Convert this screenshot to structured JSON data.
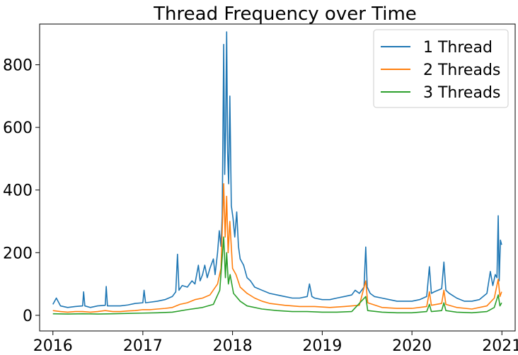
{
  "chart_data": {
    "type": "line",
    "title": "Thread Frequency over Time",
    "xlabel": "",
    "ylabel": "",
    "x_axis": {
      "kind": "date",
      "range": [
        "2015-11-08",
        "2021-02-24"
      ],
      "ticks": [
        "2016",
        "2017",
        "2018",
        "2019",
        "2020",
        "2021"
      ]
    },
    "y_axis": {
      "range": [
        -50,
        930
      ],
      "ticks": [
        0,
        200,
        400,
        600,
        800
      ]
    },
    "grid": false,
    "legend": {
      "position": "top-right"
    },
    "series": [
      {
        "name": "1 Thread",
        "color": "#1f77b4",
        "points": [
          [
            "2016-01-01",
            35
          ],
          [
            "2016-01-15",
            55
          ],
          [
            "2016-02-01",
            30
          ],
          [
            "2016-03-01",
            25
          ],
          [
            "2016-04-01",
            28
          ],
          [
            "2016-05-01",
            30
          ],
          [
            "2016-05-05",
            75
          ],
          [
            "2016-05-10",
            30
          ],
          [
            "2016-06-01",
            25
          ],
          [
            "2016-07-01",
            30
          ],
          [
            "2016-08-01",
            32
          ],
          [
            "2016-08-05",
            92
          ],
          [
            "2016-08-10",
            30
          ],
          [
            "2016-09-01",
            30
          ],
          [
            "2016-10-01",
            30
          ],
          [
            "2016-11-01",
            33
          ],
          [
            "2016-12-01",
            38
          ],
          [
            "2017-01-01",
            40
          ],
          [
            "2017-01-06",
            80
          ],
          [
            "2017-01-12",
            40
          ],
          [
            "2017-02-01",
            42
          ],
          [
            "2017-03-01",
            45
          ],
          [
            "2017-04-01",
            50
          ],
          [
            "2017-05-01",
            60
          ],
          [
            "2017-05-15",
            75
          ],
          [
            "2017-05-22",
            195
          ],
          [
            "2017-05-28",
            80
          ],
          [
            "2017-06-10",
            95
          ],
          [
            "2017-07-01",
            90
          ],
          [
            "2017-07-20",
            110
          ],
          [
            "2017-08-01",
            100
          ],
          [
            "2017-08-15",
            160
          ],
          [
            "2017-08-22",
            110
          ],
          [
            "2017-09-01",
            130
          ],
          [
            "2017-09-10",
            160
          ],
          [
            "2017-09-20",
            120
          ],
          [
            "2017-10-01",
            150
          ],
          [
            "2017-10-15",
            180
          ],
          [
            "2017-10-22",
            130
          ],
          [
            "2017-11-01",
            200
          ],
          [
            "2017-11-08",
            270
          ],
          [
            "2017-11-15",
            220
          ],
          [
            "2017-11-20",
            320
          ],
          [
            "2017-11-26",
            865
          ],
          [
            "2017-11-30",
            450
          ],
          [
            "2017-12-04",
            600
          ],
          [
            "2017-12-08",
            905
          ],
          [
            "2017-12-12",
            520
          ],
          [
            "2017-12-16",
            420
          ],
          [
            "2017-12-21",
            700
          ],
          [
            "2017-12-27",
            350
          ],
          [
            "2018-01-03",
            310
          ],
          [
            "2018-01-10",
            250
          ],
          [
            "2018-01-18",
            330
          ],
          [
            "2018-01-25",
            220
          ],
          [
            "2018-02-01",
            180
          ],
          [
            "2018-02-15",
            160
          ],
          [
            "2018-03-01",
            120
          ],
          [
            "2018-03-15",
            110
          ],
          [
            "2018-04-01",
            90
          ],
          [
            "2018-05-01",
            80
          ],
          [
            "2018-06-01",
            70
          ],
          [
            "2018-07-01",
            65
          ],
          [
            "2018-08-01",
            60
          ],
          [
            "2018-09-01",
            55
          ],
          [
            "2018-10-01",
            55
          ],
          [
            "2018-11-01",
            60
          ],
          [
            "2018-11-10",
            100
          ],
          [
            "2018-11-20",
            60
          ],
          [
            "2018-12-01",
            55
          ],
          [
            "2019-01-01",
            50
          ],
          [
            "2019-02-01",
            50
          ],
          [
            "2019-03-01",
            55
          ],
          [
            "2019-04-01",
            60
          ],
          [
            "2019-05-01",
            65
          ],
          [
            "2019-05-15",
            80
          ],
          [
            "2019-06-01",
            70
          ],
          [
            "2019-06-20",
            90
          ],
          [
            "2019-06-27",
            218
          ],
          [
            "2019-07-03",
            90
          ],
          [
            "2019-07-15",
            70
          ],
          [
            "2019-08-01",
            60
          ],
          [
            "2019-09-01",
            55
          ],
          [
            "2019-10-01",
            50
          ],
          [
            "2019-11-01",
            45
          ],
          [
            "2019-12-01",
            45
          ],
          [
            "2020-01-01",
            45
          ],
          [
            "2020-02-01",
            50
          ],
          [
            "2020-03-01",
            60
          ],
          [
            "2020-03-12",
            155
          ],
          [
            "2020-03-20",
            70
          ],
          [
            "2020-04-01",
            75
          ],
          [
            "2020-05-01",
            85
          ],
          [
            "2020-05-10",
            170
          ],
          [
            "2020-05-18",
            80
          ],
          [
            "2020-06-01",
            70
          ],
          [
            "2020-07-01",
            55
          ],
          [
            "2020-08-01",
            45
          ],
          [
            "2020-09-01",
            45
          ],
          [
            "2020-10-01",
            50
          ],
          [
            "2020-11-01",
            70
          ],
          [
            "2020-11-15",
            140
          ],
          [
            "2020-11-25",
            95
          ],
          [
            "2020-12-05",
            130
          ],
          [
            "2020-12-12",
            120
          ],
          [
            "2020-12-17",
            318
          ],
          [
            "2020-12-21",
            110
          ],
          [
            "2020-12-26",
            240
          ],
          [
            "2020-12-31",
            225
          ]
        ]
      },
      {
        "name": "2 Threads",
        "color": "#ff7f0e",
        "points": [
          [
            "2016-01-01",
            15
          ],
          [
            "2016-02-01",
            12
          ],
          [
            "2016-03-01",
            10
          ],
          [
            "2016-04-01",
            12
          ],
          [
            "2016-05-01",
            12
          ],
          [
            "2016-06-01",
            10
          ],
          [
            "2016-07-01",
            12
          ],
          [
            "2016-08-01",
            15
          ],
          [
            "2016-09-01",
            12
          ],
          [
            "2016-10-01",
            12
          ],
          [
            "2016-11-01",
            14
          ],
          [
            "2016-12-01",
            15
          ],
          [
            "2017-01-01",
            18
          ],
          [
            "2017-02-01",
            18
          ],
          [
            "2017-03-01",
            20
          ],
          [
            "2017-04-01",
            22
          ],
          [
            "2017-05-01",
            25
          ],
          [
            "2017-06-01",
            35
          ],
          [
            "2017-07-01",
            40
          ],
          [
            "2017-08-01",
            50
          ],
          [
            "2017-09-01",
            55
          ],
          [
            "2017-10-01",
            65
          ],
          [
            "2017-11-01",
            100
          ],
          [
            "2017-11-15",
            150
          ],
          [
            "2017-11-26",
            420
          ],
          [
            "2017-12-02",
            250
          ],
          [
            "2017-12-08",
            380
          ],
          [
            "2017-12-14",
            200
          ],
          [
            "2017-12-21",
            300
          ],
          [
            "2018-01-01",
            150
          ],
          [
            "2018-01-15",
            130
          ],
          [
            "2018-02-01",
            90
          ],
          [
            "2018-03-01",
            70
          ],
          [
            "2018-04-01",
            55
          ],
          [
            "2018-05-01",
            45
          ],
          [
            "2018-06-01",
            38
          ],
          [
            "2018-08-01",
            32
          ],
          [
            "2018-10-01",
            28
          ],
          [
            "2018-12-01",
            28
          ],
          [
            "2019-02-01",
            25
          ],
          [
            "2019-04-01",
            28
          ],
          [
            "2019-06-01",
            32
          ],
          [
            "2019-06-27",
            110
          ],
          [
            "2019-07-05",
            40
          ],
          [
            "2019-09-01",
            25
          ],
          [
            "2019-11-01",
            22
          ],
          [
            "2020-01-01",
            22
          ],
          [
            "2020-03-01",
            28
          ],
          [
            "2020-03-12",
            75
          ],
          [
            "2020-03-20",
            32
          ],
          [
            "2020-05-01",
            38
          ],
          [
            "2020-05-10",
            80
          ],
          [
            "2020-05-18",
            35
          ],
          [
            "2020-07-01",
            25
          ],
          [
            "2020-09-01",
            20
          ],
          [
            "2020-11-01",
            30
          ],
          [
            "2020-12-01",
            55
          ],
          [
            "2020-12-17",
            115
          ],
          [
            "2020-12-24",
            60
          ],
          [
            "2020-12-31",
            75
          ]
        ]
      },
      {
        "name": "3 Threads",
        "color": "#2ca02c",
        "points": [
          [
            "2016-01-01",
            5
          ],
          [
            "2016-03-01",
            4
          ],
          [
            "2016-05-01",
            5
          ],
          [
            "2016-07-01",
            4
          ],
          [
            "2016-09-01",
            5
          ],
          [
            "2016-11-01",
            6
          ],
          [
            "2017-01-01",
            7
          ],
          [
            "2017-03-01",
            8
          ],
          [
            "2017-05-01",
            10
          ],
          [
            "2017-07-01",
            18
          ],
          [
            "2017-09-01",
            25
          ],
          [
            "2017-10-15",
            35
          ],
          [
            "2017-11-10",
            80
          ],
          [
            "2017-11-26",
            250
          ],
          [
            "2017-12-03",
            120
          ],
          [
            "2017-12-08",
            200
          ],
          [
            "2017-12-15",
            100
          ],
          [
            "2017-12-22",
            130
          ],
          [
            "2018-01-05",
            70
          ],
          [
            "2018-02-01",
            45
          ],
          [
            "2018-03-01",
            30
          ],
          [
            "2018-05-01",
            20
          ],
          [
            "2018-07-01",
            15
          ],
          [
            "2018-09-01",
            12
          ],
          [
            "2018-11-01",
            12
          ],
          [
            "2019-01-01",
            10
          ],
          [
            "2019-03-01",
            10
          ],
          [
            "2019-05-01",
            12
          ],
          [
            "2019-06-27",
            60
          ],
          [
            "2019-07-05",
            15
          ],
          [
            "2019-09-01",
            10
          ],
          [
            "2019-11-01",
            8
          ],
          [
            "2020-01-01",
            8
          ],
          [
            "2020-03-01",
            12
          ],
          [
            "2020-03-12",
            35
          ],
          [
            "2020-03-20",
            12
          ],
          [
            "2020-05-01",
            15
          ],
          [
            "2020-05-10",
            40
          ],
          [
            "2020-05-18",
            15
          ],
          [
            "2020-07-01",
            10
          ],
          [
            "2020-09-01",
            8
          ],
          [
            "2020-11-01",
            12
          ],
          [
            "2020-12-01",
            25
          ],
          [
            "2020-12-17",
            65
          ],
          [
            "2020-12-24",
            30
          ],
          [
            "2020-12-31",
            40
          ]
        ]
      }
    ]
  }
}
